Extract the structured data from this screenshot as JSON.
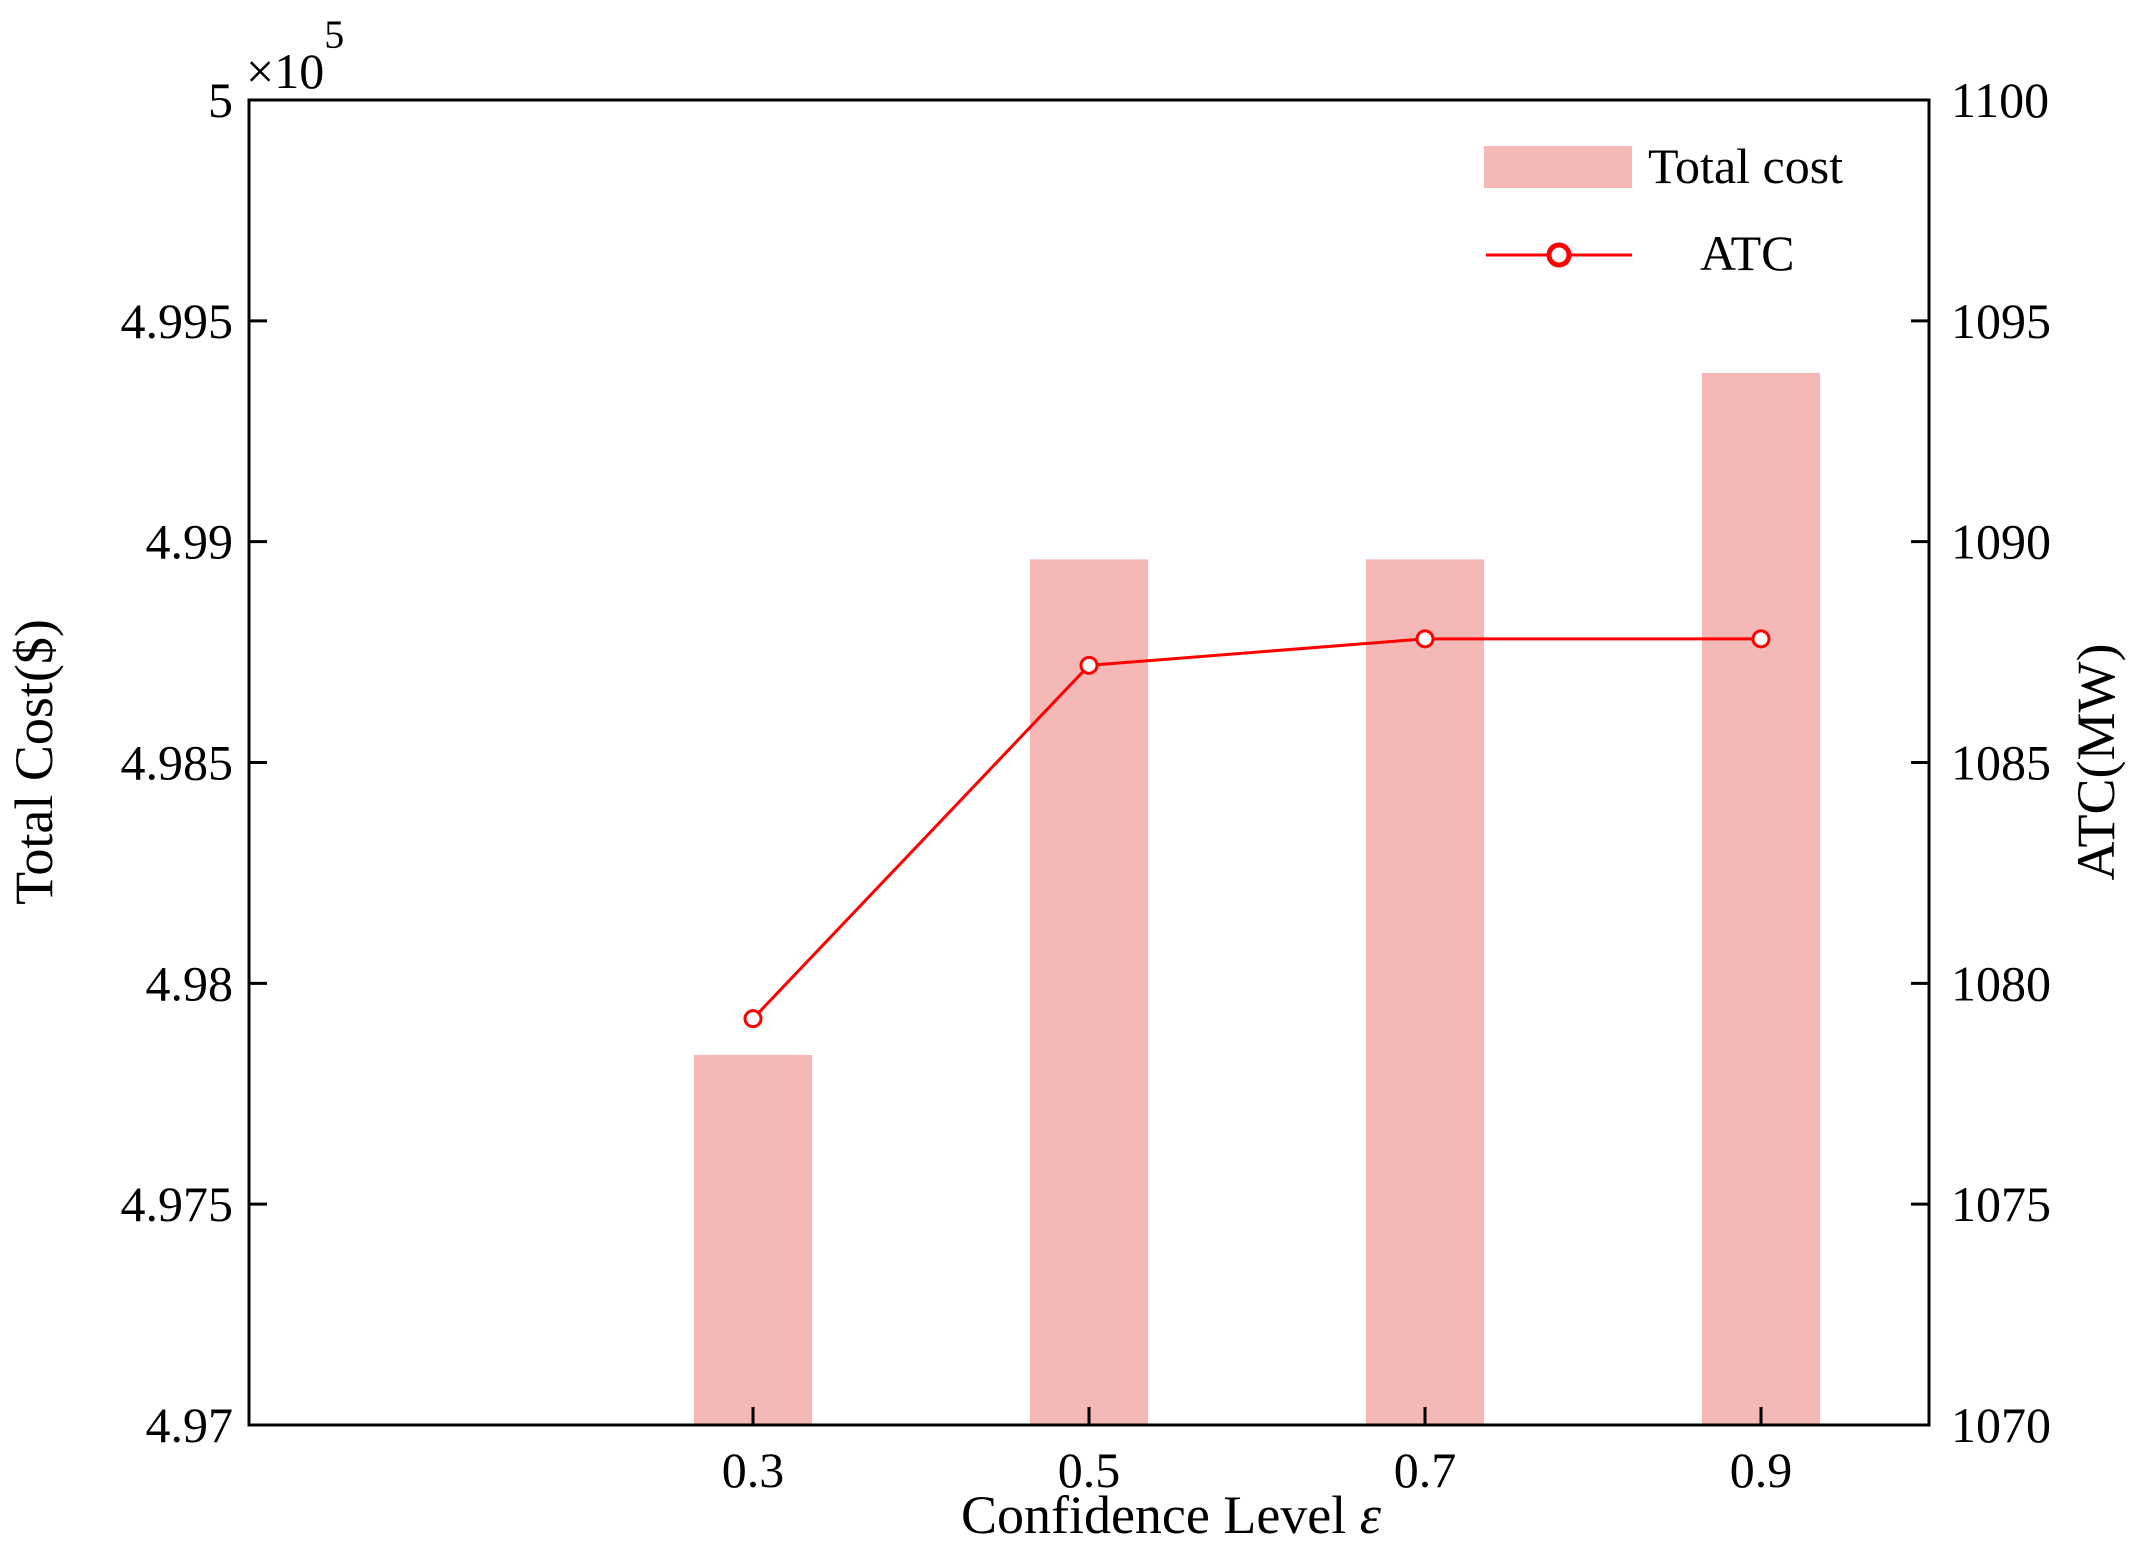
{
  "chart_data": {
    "type": "bar",
    "xlabel": "Confidence Level",
    "xlabel_symbol": "ε",
    "categories": [
      "0.3",
      "0.5",
      "0.7",
      "0.9"
    ],
    "series": [
      {
        "name": "Total cost",
        "type": "bar",
        "axis": "left",
        "color": "#f4b8b6",
        "values": [
          497838,
          498960,
          498960,
          499382
        ]
      },
      {
        "name": "ATC",
        "type": "line",
        "axis": "right",
        "color": "#ff0000",
        "marker": "open-circle",
        "values": [
          1079.2,
          1087.2,
          1087.8,
          1087.8
        ]
      }
    ],
    "y_left": {
      "label": "Total Cost($)",
      "multiplier_label": "×10",
      "multiplier_exponent": "5",
      "lim": [
        4.97,
        5.0
      ],
      "ticks": [
        4.97,
        4.975,
        4.98,
        4.985,
        4.99,
        4.995,
        5.0
      ],
      "tick_labels": [
        "4.97",
        "4.975",
        "4.98",
        "4.985",
        "4.99",
        "4.995",
        "5"
      ]
    },
    "y_right": {
      "label": "ATC(MW)",
      "lim": [
        1070,
        1100
      ],
      "ticks": [
        1070,
        1075,
        1080,
        1085,
        1090,
        1095,
        1100
      ],
      "tick_labels": [
        "1070",
        "1075",
        "1080",
        "1085",
        "1090",
        "1095",
        "1100"
      ]
    },
    "legend": {
      "placement": "top-right",
      "entries": [
        "Total cost",
        "ATC"
      ]
    },
    "grid": false
  }
}
